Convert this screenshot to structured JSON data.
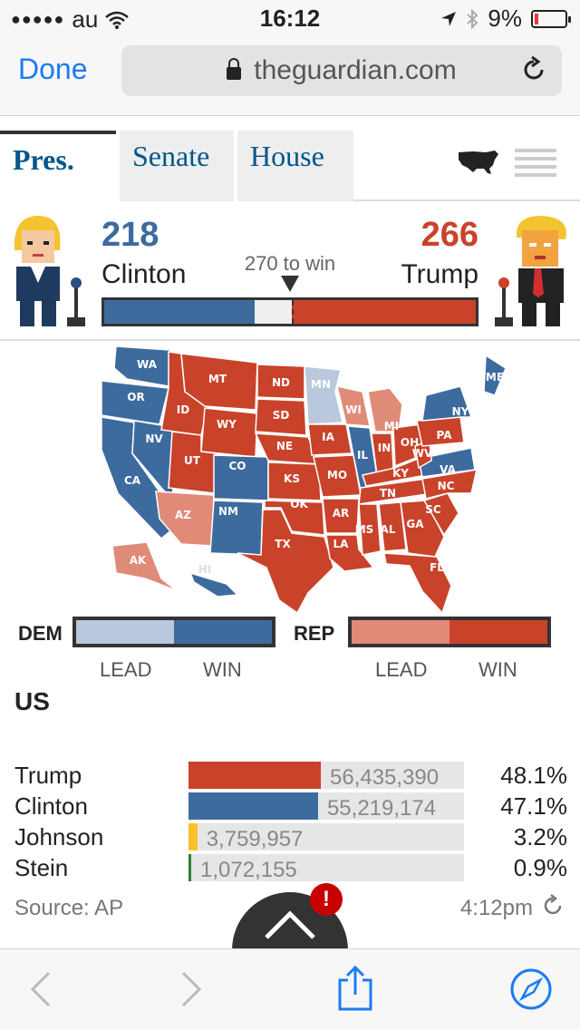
{
  "status_bar": {
    "carrier": "au",
    "time": "16:12",
    "battery": "9%"
  },
  "browser": {
    "done_label": "Done",
    "url": "theguardian.com"
  },
  "tabs": [
    {
      "label": "Pres.",
      "active": true
    },
    {
      "label": "Senate",
      "active": false
    },
    {
      "label": "House",
      "active": false
    }
  ],
  "hero": {
    "dem": {
      "count": "218",
      "name": "Clinton",
      "ev": 218
    },
    "rep": {
      "count": "266",
      "name": "Trump",
      "ev": 266
    },
    "to_win": "270 to win",
    "total_ev": 538,
    "win_threshold": 270
  },
  "map": {
    "states": [
      {
        "abbr": "WA",
        "status": "dem-win"
      },
      {
        "abbr": "OR",
        "status": "dem-win"
      },
      {
        "abbr": "CA",
        "status": "dem-win"
      },
      {
        "abbr": "NV",
        "status": "dem-win"
      },
      {
        "abbr": "ID",
        "status": "rep-win"
      },
      {
        "abbr": "MT",
        "status": "rep-win"
      },
      {
        "abbr": "WY",
        "status": "rep-win"
      },
      {
        "abbr": "UT",
        "status": "rep-win"
      },
      {
        "abbr": "AZ",
        "status": "rep-lead"
      },
      {
        "abbr": "CO",
        "status": "dem-win"
      },
      {
        "abbr": "NM",
        "status": "dem-win"
      },
      {
        "abbr": "ND",
        "status": "rep-win"
      },
      {
        "abbr": "SD",
        "status": "rep-win"
      },
      {
        "abbr": "NE",
        "status": "rep-win"
      },
      {
        "abbr": "KS",
        "status": "rep-win"
      },
      {
        "abbr": "OK",
        "status": "rep-win"
      },
      {
        "abbr": "TX",
        "status": "rep-win"
      },
      {
        "abbr": "MN",
        "status": "dem-lead"
      },
      {
        "abbr": "IA",
        "status": "rep-win"
      },
      {
        "abbr": "MO",
        "status": "rep-win"
      },
      {
        "abbr": "AR",
        "status": "rep-win"
      },
      {
        "abbr": "LA",
        "status": "rep-win"
      },
      {
        "abbr": "WI",
        "status": "rep-lead"
      },
      {
        "abbr": "IL",
        "status": "dem-win"
      },
      {
        "abbr": "MI",
        "status": "rep-lead"
      },
      {
        "abbr": "IN",
        "status": "rep-win"
      },
      {
        "abbr": "OH",
        "status": "rep-win"
      },
      {
        "abbr": "KY",
        "status": "rep-win"
      },
      {
        "abbr": "TN",
        "status": "rep-win"
      },
      {
        "abbr": "MS",
        "status": "rep-win"
      },
      {
        "abbr": "AL",
        "status": "rep-win"
      },
      {
        "abbr": "GA",
        "status": "rep-win"
      },
      {
        "abbr": "FL",
        "status": "rep-win"
      },
      {
        "abbr": "SC",
        "status": "rep-win"
      },
      {
        "abbr": "NC",
        "status": "rep-win"
      },
      {
        "abbr": "VA",
        "status": "dem-win"
      },
      {
        "abbr": "WV",
        "status": "rep-win"
      },
      {
        "abbr": "PA",
        "status": "rep-win"
      },
      {
        "abbr": "NY",
        "status": "dem-win"
      },
      {
        "abbr": "ME",
        "status": "dem-win"
      },
      {
        "abbr": "AK",
        "status": "rep-lead"
      },
      {
        "abbr": "HI",
        "status": "dem-win"
      }
    ]
  },
  "legend": {
    "dem_label": "DEM",
    "rep_label": "REP",
    "lead_label": "LEAD",
    "win_label": "WIN"
  },
  "region": "US",
  "results": [
    {
      "name": "Trump",
      "votes": "56,435,390",
      "pct": "48.1%",
      "share": 0.481,
      "color": "#c9422a"
    },
    {
      "name": "Clinton",
      "votes": "55,219,174",
      "pct": "47.1%",
      "share": 0.471,
      "color": "#3d6b9e"
    },
    {
      "name": "Johnson",
      "votes": "3,759,957",
      "pct": "3.2%",
      "share": 0.032,
      "color": "#fbc02d"
    },
    {
      "name": "Stein",
      "votes": "1,072,155",
      "pct": "0.9%",
      "share": 0.009,
      "color": "#2e7d32"
    }
  ],
  "footer": {
    "source": "Source: AP",
    "updated": "4:12pm"
  },
  "alert_badge": "!",
  "colors": {
    "dem_win": "#3d6b9e",
    "dem_lead": "#b9c8dc",
    "rep_win": "#c9422a",
    "rep_lead": "#e08a78",
    "accent": "#1b7cf2"
  },
  "icons": {
    "wifi": "wifi-icon",
    "location": "location-arrow-icon",
    "bluetooth": "bluetooth-icon",
    "lock": "lock-icon",
    "reload": "reload-icon",
    "us_map": "us-map-icon",
    "grid": "grid-view-icon",
    "back": "chevron-left-icon",
    "forward": "chevron-right-icon",
    "share": "share-icon",
    "compass": "safari-compass-icon"
  }
}
